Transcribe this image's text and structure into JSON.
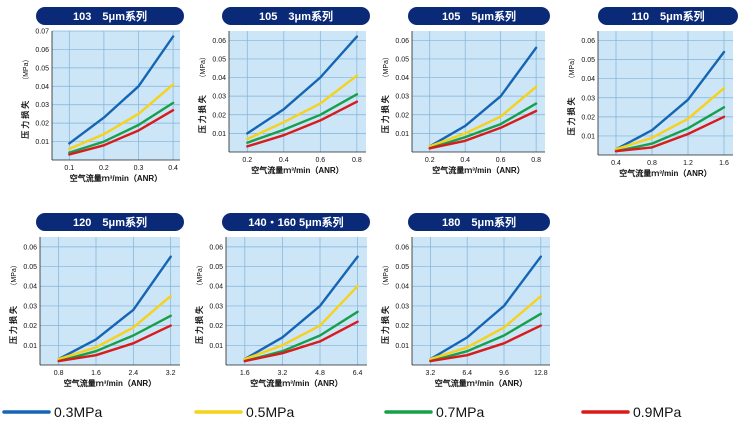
{
  "colors": {
    "title_bg": "#0a2a78",
    "plot_bg": "#cce5f7",
    "grid": "#7fb4d9",
    "s03": "#1565b5",
    "s05": "#f6d21a",
    "s07": "#16a04a",
    "s09": "#d81b1b"
  },
  "legend": [
    {
      "name": "0.3MPa",
      "color_key": "s03"
    },
    {
      "name": "0.5MPa",
      "color_key": "s05"
    },
    {
      "name": "0.7MPa",
      "color_key": "s07"
    },
    {
      "name": "0.9MPa",
      "color_key": "s09"
    }
  ],
  "chart_data": [
    {
      "type": "line",
      "title": "103　5μm系列",
      "xlabel": "空气流量ｍ³/min（ANR）",
      "ylabel": "压力损失",
      "yunit": "（MPa）",
      "xlim": [
        0.05,
        0.42
      ],
      "ylim": [
        0,
        0.07
      ],
      "xticks": [
        "0.1",
        "0.2",
        "0.3",
        "0.4"
      ],
      "yticks": [
        "0.01",
        "0.02",
        "0.03",
        "0.04",
        "0.05",
        "0.06",
        "0.07"
      ],
      "x": [
        0.1,
        0.2,
        0.3,
        0.4
      ],
      "series": [
        {
          "name": "0.3MPa",
          "values": [
            0.009,
            0.023,
            0.04,
            0.067
          ]
        },
        {
          "name": "0.5MPa",
          "values": [
            0.006,
            0.014,
            0.025,
            0.041
          ]
        },
        {
          "name": "0.7MPa",
          "values": [
            0.004,
            0.01,
            0.019,
            0.031
          ]
        },
        {
          "name": "0.9MPa",
          "values": [
            0.003,
            0.008,
            0.016,
            0.027
          ]
        }
      ]
    },
    {
      "type": "line",
      "title": "105　3μm系列",
      "xlabel": "空气流量ｍ³/min（ANR）",
      "ylabel": "压力损失",
      "yunit": "（MPa）",
      "xlim": [
        0.1,
        0.85
      ],
      "ylim": [
        0,
        0.065
      ],
      "xticks": [
        "0.2",
        "0.4",
        "0.6",
        "0.8"
      ],
      "yticks": [
        "0.01",
        "0.02",
        "0.03",
        "0.04",
        "0.05",
        "0.06"
      ],
      "x": [
        0.2,
        0.4,
        0.6,
        0.8
      ],
      "series": [
        {
          "name": "0.3MPa",
          "values": [
            0.01,
            0.023,
            0.04,
            0.062
          ]
        },
        {
          "name": "0.5MPa",
          "values": [
            0.007,
            0.016,
            0.026,
            0.041
          ]
        },
        {
          "name": "0.7MPa",
          "values": [
            0.005,
            0.012,
            0.02,
            0.031
          ]
        },
        {
          "name": "0.9MPa",
          "values": [
            0.003,
            0.009,
            0.017,
            0.027
          ]
        }
      ]
    },
    {
      "type": "line",
      "title": "105　5μm系列",
      "xlabel": "空气流量ｍ³/min（ANR）",
      "ylabel": "压力损失",
      "yunit": "（MPa）",
      "xlim": [
        0.1,
        0.85
      ],
      "ylim": [
        0,
        0.065
      ],
      "xticks": [
        "0.2",
        "0.4",
        "0.6",
        "0.8"
      ],
      "yticks": [
        "0.01",
        "0.02",
        "0.03",
        "0.04",
        "0.05",
        "0.06"
      ],
      "x": [
        0.2,
        0.4,
        0.6,
        0.8
      ],
      "series": [
        {
          "name": "0.3MPa",
          "values": [
            0.003,
            0.014,
            0.03,
            0.056
          ]
        },
        {
          "name": "0.5MPa",
          "values": [
            0.003,
            0.01,
            0.019,
            0.035
          ]
        },
        {
          "name": "0.7MPa",
          "values": [
            0.002,
            0.008,
            0.015,
            0.026
          ]
        },
        {
          "name": "0.9MPa",
          "values": [
            0.002,
            0.006,
            0.013,
            0.022
          ]
        }
      ]
    },
    {
      "type": "line",
      "title": "110　5μm系列",
      "xlabel": "空气流量ｍ³/min（ANR）",
      "ylabel": "压力损失",
      "yunit": "（MPa）",
      "xlim": [
        0.2,
        1.7
      ],
      "ylim": [
        0,
        0.065
      ],
      "xticks": [
        "0.4",
        "0.8",
        "1.2",
        "1.6"
      ],
      "yticks": [
        "0.01",
        "0.02",
        "0.03",
        "0.04",
        "0.05",
        "0.06"
      ],
      "x": [
        0.4,
        0.8,
        1.2,
        1.6
      ],
      "series": [
        {
          "name": "0.3MPa",
          "values": [
            0.003,
            0.013,
            0.029,
            0.054
          ]
        },
        {
          "name": "0.5MPa",
          "values": [
            0.003,
            0.009,
            0.019,
            0.035
          ]
        },
        {
          "name": "0.7MPa",
          "values": [
            0.002,
            0.006,
            0.014,
            0.025
          ]
        },
        {
          "name": "0.9MPa",
          "values": [
            0.002,
            0.004,
            0.011,
            0.02
          ]
        }
      ]
    },
    {
      "type": "line",
      "title": "120　5μm系列",
      "xlabel": "空气流量ｍ³/min（ANR）",
      "ylabel": "压力损失",
      "yunit": "（MPa）",
      "xlim": [
        0.4,
        3.4
      ],
      "ylim": [
        0,
        0.065
      ],
      "xticks": [
        "0.8",
        "1.6",
        "2.4",
        "3.2"
      ],
      "yticks": [
        "0.01",
        "0.02",
        "0.03",
        "0.04",
        "0.05",
        "0.06"
      ],
      "x": [
        0.8,
        1.6,
        2.4,
        3.2
      ],
      "series": [
        {
          "name": "0.3MPa",
          "values": [
            0.003,
            0.013,
            0.028,
            0.055
          ]
        },
        {
          "name": "0.5MPa",
          "values": [
            0.003,
            0.009,
            0.019,
            0.035
          ]
        },
        {
          "name": "0.7MPa",
          "values": [
            0.002,
            0.007,
            0.015,
            0.025
          ]
        },
        {
          "name": "0.9MPa",
          "values": [
            0.002,
            0.005,
            0.011,
            0.02
          ]
        }
      ]
    },
    {
      "type": "line",
      "title": "140・160 5μm系列",
      "xlabel": "空气流量ｍ³/min（ANR）",
      "ylabel": "压力损失",
      "yunit": "（MPa）",
      "xlim": [
        0.8,
        6.8
      ],
      "ylim": [
        0,
        0.065
      ],
      "xticks": [
        "1.6",
        "3.2",
        "4.8",
        "6.4"
      ],
      "yticks": [
        "0.01",
        "0.02",
        "0.03",
        "0.04",
        "0.05",
        "0.06"
      ],
      "x": [
        1.6,
        3.2,
        4.8,
        6.4
      ],
      "series": [
        {
          "name": "0.3MPa",
          "values": [
            0.003,
            0.014,
            0.03,
            0.055
          ]
        },
        {
          "name": "0.5MPa",
          "values": [
            0.003,
            0.01,
            0.02,
            0.04
          ]
        },
        {
          "name": "0.7MPa",
          "values": [
            0.002,
            0.007,
            0.015,
            0.027
          ]
        },
        {
          "name": "0.9MPa",
          "values": [
            0.002,
            0.006,
            0.012,
            0.022
          ]
        }
      ]
    },
    {
      "type": "line",
      "title": "180　5μm系列",
      "xlabel": "空气流量ｍ³/min（ANR）",
      "ylabel": "压力损失",
      "yunit": "（MPa）",
      "xlim": [
        1.6,
        13.6
      ],
      "ylim": [
        0,
        0.065
      ],
      "xticks": [
        "3.2",
        "6.4",
        "9.6",
        "12.8"
      ],
      "yticks": [
        "0.01",
        "0.02",
        "0.03",
        "0.04",
        "0.05",
        "0.06"
      ],
      "x": [
        3.2,
        6.4,
        9.6,
        12.8
      ],
      "series": [
        {
          "name": "0.3MPa",
          "values": [
            0.003,
            0.014,
            0.03,
            0.055
          ]
        },
        {
          "name": "0.5MPa",
          "values": [
            0.003,
            0.009,
            0.019,
            0.035
          ]
        },
        {
          "name": "0.7MPa",
          "values": [
            0.002,
            0.007,
            0.015,
            0.026
          ]
        },
        {
          "name": "0.9MPa",
          "values": [
            0.002,
            0.005,
            0.011,
            0.02
          ]
        }
      ]
    }
  ]
}
